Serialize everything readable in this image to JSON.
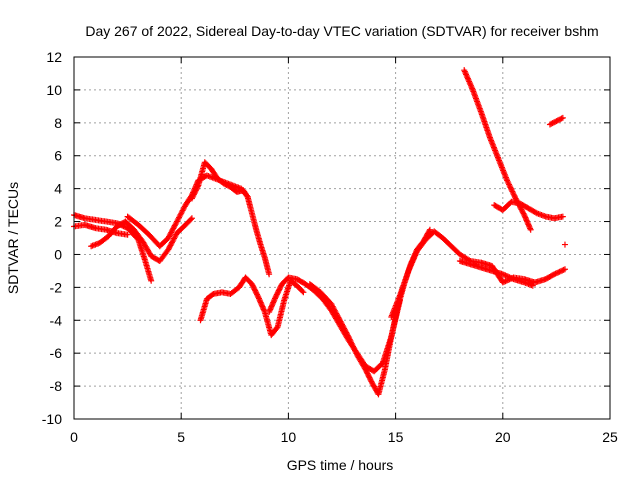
{
  "chart_data": {
    "type": "scatter",
    "title": "Day 267 of 2022, Sidereal Day-to-day VTEC variation (SDTVAR) for receiver bshm",
    "xlabel": "GPS time / hours",
    "ylabel": "SDTVAR / TECUs",
    "xlim": [
      0,
      25
    ],
    "ylim": [
      -10,
      12
    ],
    "xticks": [
      "0",
      "5",
      "10",
      "15",
      "20",
      "25"
    ],
    "yticks": [
      "-10",
      "-8",
      "-6",
      "-4",
      "-2",
      "0",
      "2",
      "4",
      "6",
      "8",
      "10",
      "12"
    ],
    "grid": true,
    "marker": "+",
    "color": "#ff0000",
    "series": [
      {
        "x": [
          0.0,
          0.5,
          1.0,
          1.5,
          2.0,
          2.5,
          3.0,
          3.3,
          3.6
        ],
        "y": [
          2.4,
          2.2,
          2.1,
          2.0,
          1.9,
          1.6,
          0.9,
          -0.3,
          -1.6
        ]
      },
      {
        "x": [
          0.0,
          0.5,
          1.0,
          1.5,
          2.0,
          2.5
        ],
        "y": [
          1.7,
          1.8,
          1.6,
          1.5,
          1.3,
          1.2
        ]
      },
      {
        "x": [
          0.8,
          1.2,
          1.6,
          2.0,
          2.4,
          2.8,
          3.2,
          3.6,
          4.0,
          4.4,
          4.8,
          5.2,
          5.5
        ],
        "y": [
          0.5,
          0.7,
          1.1,
          1.7,
          2.0,
          1.5,
          0.8,
          -0.1,
          -0.4,
          0.3,
          1.3,
          1.8,
          2.2
        ]
      },
      {
        "x": [
          2.5,
          3.0,
          3.5,
          4.0,
          4.4,
          4.8,
          5.2,
          5.5,
          5.8,
          6.2,
          6.6,
          7.0,
          7.4,
          7.8,
          8.1,
          8.3,
          8.5,
          8.7,
          8.9,
          9.1
        ],
        "y": [
          2.3,
          1.8,
          1.2,
          0.5,
          1.0,
          2.0,
          3.0,
          3.6,
          4.5,
          4.8,
          4.6,
          4.4,
          4.2,
          4.0,
          3.5,
          2.5,
          1.5,
          0.6,
          -0.2,
          -1.2
        ]
      },
      {
        "x": [
          5.5,
          5.8,
          6.1,
          6.4,
          6.7,
          7.0,
          7.3,
          7.6,
          7.9,
          8.1
        ],
        "y": [
          3.4,
          4.2,
          5.6,
          5.2,
          4.6,
          4.3,
          4.1,
          3.8,
          3.9,
          3.5
        ]
      },
      {
        "x": [
          5.9,
          6.2,
          6.5,
          6.9,
          7.3,
          7.7,
          8.0,
          8.3,
          8.6,
          8.9,
          9.2,
          9.5,
          9.8,
          10.1,
          10.4,
          10.7
        ],
        "y": [
          -4.0,
          -2.7,
          -2.4,
          -2.3,
          -2.4,
          -2.0,
          -1.4,
          -1.8,
          -2.6,
          -3.5,
          -4.9,
          -4.4,
          -2.8,
          -1.6,
          -1.9,
          -2.3
        ]
      },
      {
        "x": [
          9.1,
          9.4,
          9.7,
          10.0,
          10.4,
          10.8,
          11.2,
          11.6,
          12.0,
          12.4,
          12.8,
          13.2,
          13.6,
          14.0,
          14.4,
          14.8,
          15.2
        ],
        "y": [
          -3.5,
          -2.6,
          -1.8,
          -1.4,
          -1.5,
          -1.8,
          -2.2,
          -2.7,
          -3.4,
          -4.3,
          -5.2,
          -6.0,
          -6.8,
          -7.1,
          -6.6,
          -5.0,
          -2.8
        ]
      },
      {
        "x": [
          11.0,
          11.5,
          12.0,
          12.4,
          12.8,
          13.2,
          13.6,
          13.9,
          14.2,
          14.5,
          14.8,
          15.1,
          15.4,
          15.7,
          16.0,
          16.3,
          16.6
        ],
        "y": [
          -1.8,
          -2.3,
          -3.0,
          -4.0,
          -5.0,
          -6.1,
          -7.0,
          -7.8,
          -8.5,
          -7.0,
          -5.0,
          -3.2,
          -1.8,
          -0.6,
          0.3,
          0.8,
          1.5
        ]
      },
      {
        "x": [
          14.8,
          15.2,
          15.6,
          16.0,
          16.4,
          16.8,
          17.2,
          17.6,
          18.0,
          18.5,
          19.0,
          19.5,
          20.0,
          20.5,
          21.0,
          21.5,
          22.0,
          22.4,
          22.9
        ],
        "y": [
          -3.8,
          -2.5,
          -1.0,
          0.2,
          0.9,
          1.4,
          1.0,
          0.5,
          0.0,
          -0.4,
          -0.5,
          -0.7,
          -1.7,
          -1.4,
          -1.5,
          -1.7,
          -1.5,
          -1.2,
          -0.9
        ]
      },
      {
        "x": [
          18.0,
          18.5,
          19.0,
          19.5,
          20.0,
          20.5,
          21.0,
          21.4
        ],
        "y": [
          -0.4,
          -0.6,
          -0.8,
          -1.0,
          -1.2,
          -1.5,
          -1.7,
          -1.9
        ]
      },
      {
        "x": [
          18.2,
          18.6,
          19.0,
          19.4,
          19.8,
          20.2,
          20.6,
          21.0,
          21.3
        ],
        "y": [
          11.2,
          10.0,
          8.6,
          7.1,
          5.8,
          4.5,
          3.4,
          2.4,
          1.5
        ]
      },
      {
        "x": [
          19.6,
          20.0,
          20.4,
          20.8,
          21.2,
          21.6,
          22.0,
          22.4,
          22.8
        ],
        "y": [
          3.0,
          2.7,
          3.2,
          3.1,
          2.8,
          2.5,
          2.3,
          2.2,
          2.3
        ]
      },
      {
        "x": [
          22.2,
          22.5,
          22.8
        ],
        "y": [
          7.9,
          8.1,
          8.3
        ]
      },
      {
        "x": [
          22.9
        ],
        "y": [
          0.6
        ]
      }
    ]
  }
}
